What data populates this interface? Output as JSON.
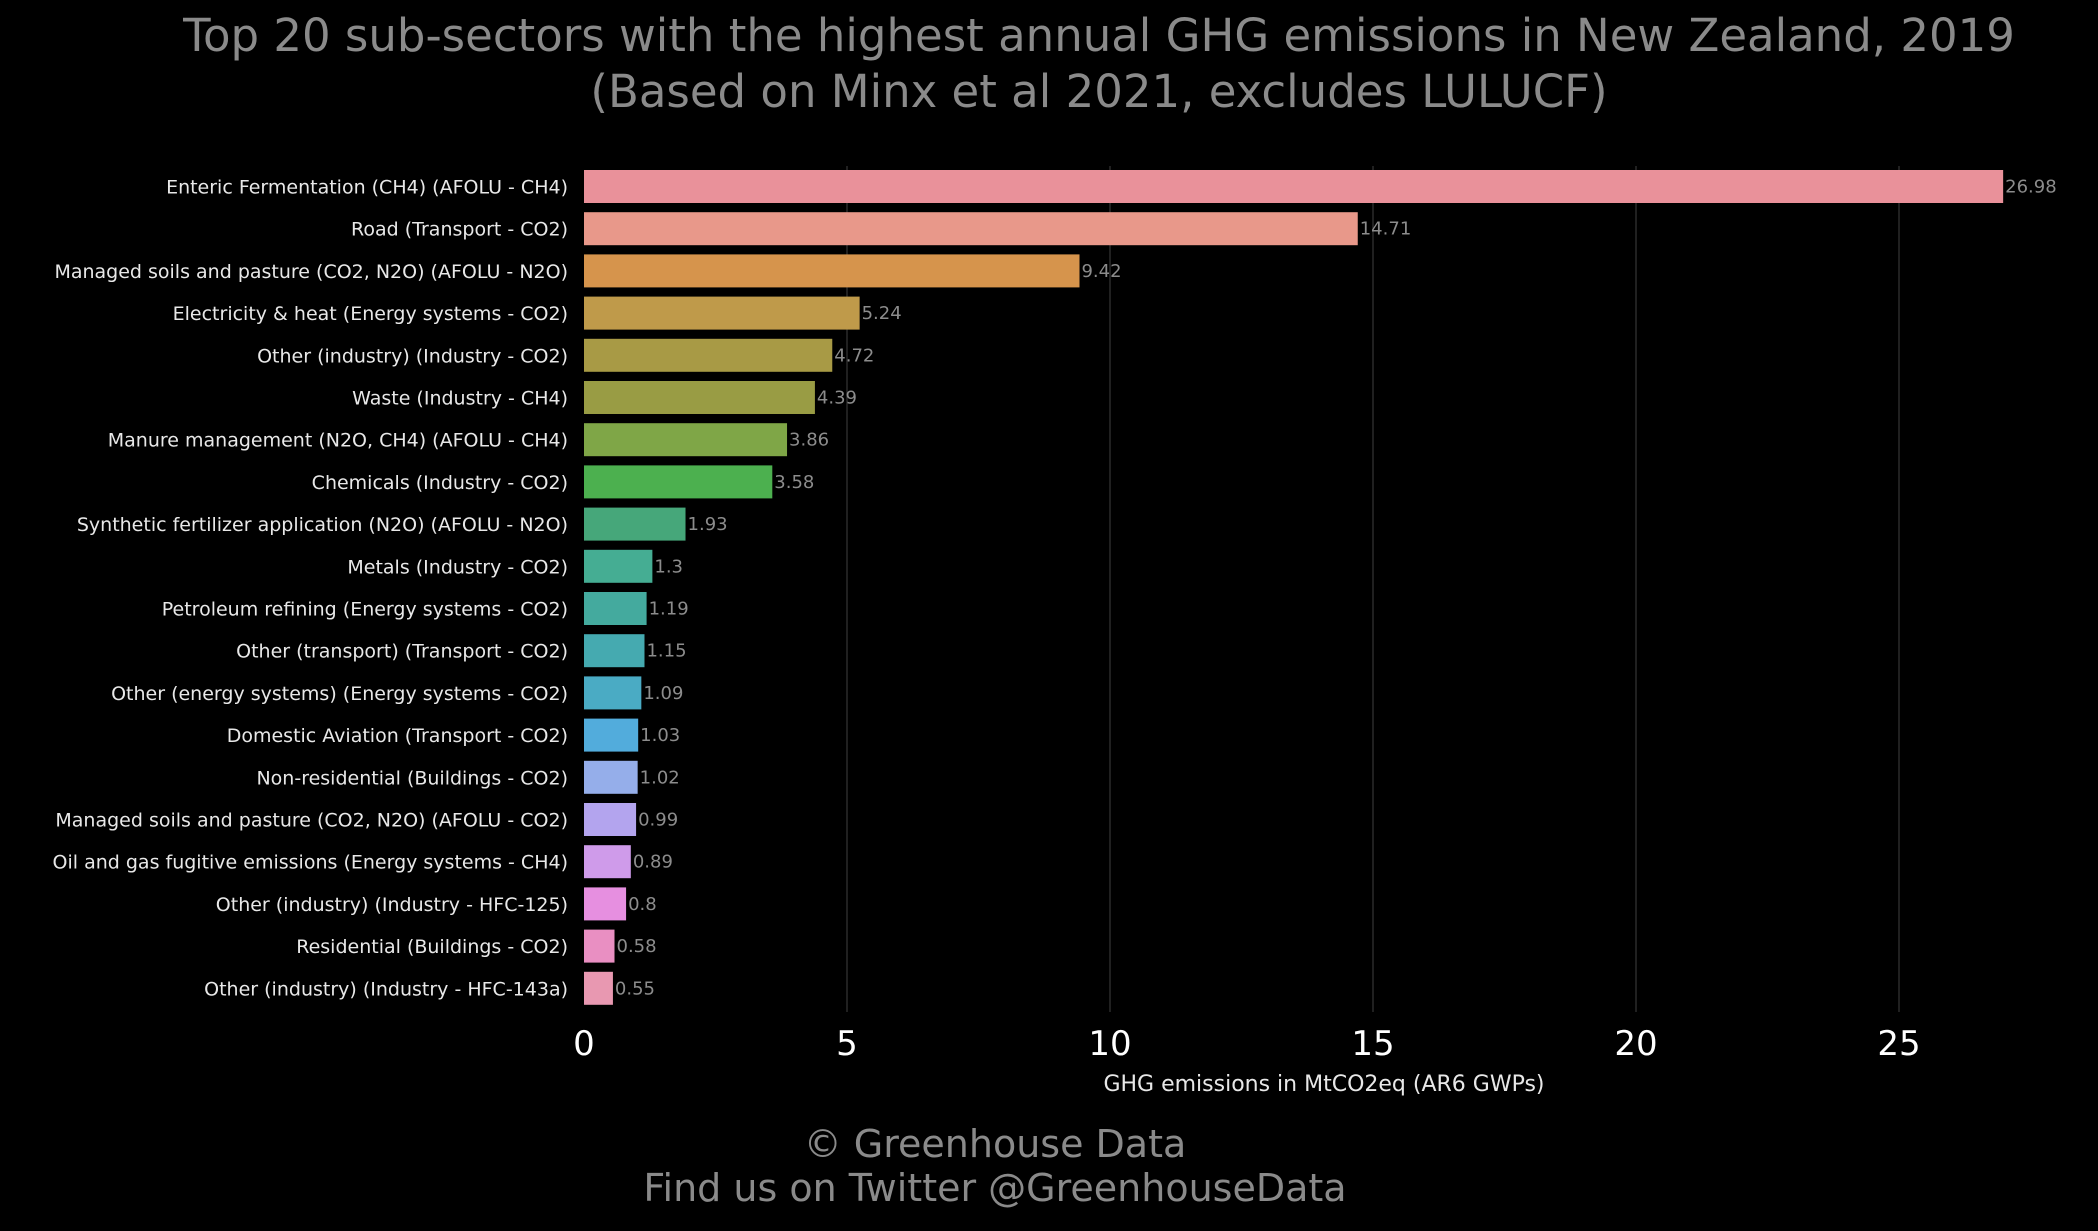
{
  "chart_data": {
    "type": "bar",
    "orientation": "horizontal",
    "title": "Top 20 sub-sectors with the highest annual GHG emissions in New Zealand, 2019",
    "subtitle": "(Based on Minx et al 2021, excludes LULUCF)",
    "xlabel": "GHG emissions in MtCO2eq (AR6 GWPs)",
    "ylabel": "",
    "xlim": [
      0,
      27
    ],
    "xticks": [
      0,
      5,
      10,
      15,
      20,
      25
    ],
    "grid": "vertical",
    "categories": [
      "Enteric Fermentation (CH4) (AFOLU - CH4)",
      "Road (Transport - CO2)",
      "Managed soils and pasture (CO2, N2O) (AFOLU - N2O)",
      "Electricity & heat (Energy systems - CO2)",
      "Other (industry) (Industry - CO2)",
      "Waste (Industry - CH4)",
      "Manure management (N2O, CH4) (AFOLU - CH4)",
      "Chemicals (Industry - CO2)",
      "Synthetic fertilizer application (N2O) (AFOLU - N2O)",
      "Metals (Industry - CO2)",
      "Petroleum refining (Energy systems - CO2)",
      "Other (transport) (Transport - CO2)",
      "Other (energy systems) (Energy systems - CO2)",
      "Domestic Aviation (Transport - CO2)",
      "Non-residential (Buildings - CO2)",
      "Managed soils and pasture (CO2, N2O) (AFOLU - CO2)",
      "Oil and gas fugitive emissions (Energy systems - CH4)",
      "Other (industry) (Industry - HFC-125)",
      "Residential (Buildings - CO2)",
      "Other (industry) (Industry - HFC-143a)"
    ],
    "values": [
      26.98,
      14.71,
      9.42,
      5.24,
      4.72,
      4.39,
      3.86,
      3.58,
      1.93,
      1.3,
      1.19,
      1.15,
      1.09,
      1.03,
      1.02,
      0.99,
      0.89,
      0.8,
      0.58,
      0.55
    ],
    "value_labels": [
      "26.98",
      "14.71",
      "9.42",
      "5.24",
      "4.72",
      "4.39",
      "3.86",
      "3.58",
      "1.93",
      "1.3",
      "1.19",
      "1.15",
      "1.09",
      "1.03",
      "1.02",
      "0.99",
      "0.89",
      "0.8",
      "0.58",
      "0.55"
    ],
    "colors": [
      "#e9919a",
      "#e8988a",
      "#d6944c",
      "#bf9a4a",
      "#a89a45",
      "#999c44",
      "#7fa647",
      "#4cb04f",
      "#46a77a",
      "#45ad93",
      "#44aa9e",
      "#45aab0",
      "#4aabc4",
      "#52acdc",
      "#95aeea",
      "#b3a4ee",
      "#cf9bea",
      "#e68fe0",
      "#e98fc2",
      "#e898b1"
    ]
  },
  "footer": {
    "line1": "© Greenhouse Data",
    "line2": "Find us on Twitter @GreenhouseData"
  },
  "colors": {
    "background": "#000000",
    "title": "#8a8a8a",
    "gridline": "#2b2b2b"
  }
}
